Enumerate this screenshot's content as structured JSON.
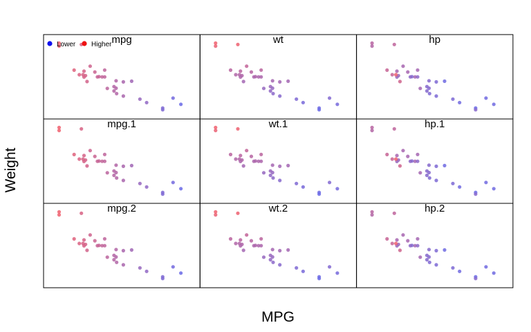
{
  "chart_data": {
    "type": "scatter",
    "xlabel": "MPG",
    "ylabel": "Weight",
    "layout": {
      "rows": 3,
      "cols": 3
    },
    "x_range": [
      9,
      36
    ],
    "y_range": [
      5.6,
      1.3
    ],
    "legend": {
      "placement": "top-left of first panel",
      "entries": [
        {
          "label": "Lower",
          "color": "#1010ee"
        },
        {
          "label": "Higher",
          "color": "#ee1010"
        }
      ]
    },
    "colors": {
      "low": "#6a6ae6",
      "high": "#f0606e"
    },
    "x": [
      21.0,
      21.0,
      22.8,
      21.4,
      18.7,
      18.1,
      14.3,
      24.4,
      22.8,
      19.2,
      17.8,
      16.4,
      17.3,
      15.2,
      10.4,
      10.4,
      14.7,
      32.4,
      30.4,
      33.9,
      21.5,
      15.5,
      15.2,
      13.3,
      19.2,
      27.3,
      26.0,
      30.4,
      15.8,
      19.7,
      15.0,
      21.4
    ],
    "y": [
      2.62,
      2.875,
      2.32,
      3.215,
      3.44,
      3.46,
      3.57,
      3.19,
      3.15,
      3.44,
      3.44,
      4.07,
      3.73,
      3.78,
      5.25,
      5.424,
      5.345,
      2.2,
      1.615,
      1.835,
      2.465,
      3.52,
      3.435,
      3.84,
      3.845,
      1.935,
      2.14,
      1.513,
      3.17,
      2.77,
      3.57,
      2.78
    ],
    "panels": [
      {
        "title": "mpg",
        "color_by": [
          21.0,
          21.0,
          22.8,
          21.4,
          18.7,
          18.1,
          14.3,
          24.4,
          22.8,
          19.2,
          17.8,
          16.4,
          17.3,
          15.2,
          10.4,
          10.4,
          14.7,
          32.4,
          30.4,
          33.9,
          21.5,
          15.5,
          15.2,
          13.3,
          19.2,
          27.3,
          26.0,
          30.4,
          15.8,
          19.7,
          15.0,
          21.4
        ],
        "invert": true,
        "show_legend": true
      },
      {
        "title": "wt",
        "color_by": [
          2.62,
          2.875,
          2.32,
          3.215,
          3.44,
          3.46,
          3.57,
          3.19,
          3.15,
          3.44,
          3.44,
          4.07,
          3.73,
          3.78,
          5.25,
          5.424,
          5.345,
          2.2,
          1.615,
          1.835,
          2.465,
          3.52,
          3.435,
          3.84,
          3.845,
          1.935,
          2.14,
          1.513,
          3.17,
          2.77,
          3.57,
          2.78
        ],
        "invert": false,
        "show_legend": false
      },
      {
        "title": "hp",
        "color_by": [
          110,
          110,
          93,
          110,
          175,
          105,
          245,
          62,
          95,
          123,
          123,
          180,
          180,
          180,
          205,
          215,
          230,
          66,
          52,
          65,
          97,
          150,
          150,
          245,
          175,
          66,
          91,
          113,
          264,
          175,
          335,
          109
        ],
        "invert": false,
        "show_legend": false
      },
      {
        "title": "mpg.1",
        "color_by": [
          21.0,
          21.0,
          22.8,
          21.4,
          18.7,
          18.1,
          14.3,
          24.4,
          22.8,
          19.2,
          17.8,
          16.4,
          17.3,
          15.2,
          10.4,
          10.4,
          14.7,
          32.4,
          30.4,
          33.9,
          21.5,
          15.5,
          15.2,
          13.3,
          19.2,
          27.3,
          26.0,
          30.4,
          15.8,
          19.7,
          15.0,
          21.4
        ],
        "invert": true,
        "show_legend": false
      },
      {
        "title": "wt.1",
        "color_by": [
          2.62,
          2.875,
          2.32,
          3.215,
          3.44,
          3.46,
          3.57,
          3.19,
          3.15,
          3.44,
          3.44,
          4.07,
          3.73,
          3.78,
          5.25,
          5.424,
          5.345,
          2.2,
          1.615,
          1.835,
          2.465,
          3.52,
          3.435,
          3.84,
          3.845,
          1.935,
          2.14,
          1.513,
          3.17,
          2.77,
          3.57,
          2.78
        ],
        "invert": false,
        "show_legend": false
      },
      {
        "title": "hp.1",
        "color_by": [
          110,
          110,
          93,
          110,
          175,
          105,
          245,
          62,
          95,
          123,
          123,
          180,
          180,
          180,
          205,
          215,
          230,
          66,
          52,
          65,
          97,
          150,
          150,
          245,
          175,
          66,
          91,
          113,
          264,
          175,
          335,
          109
        ],
        "invert": false,
        "show_legend": false
      },
      {
        "title": "mpg.2",
        "color_by": [
          21.0,
          21.0,
          22.8,
          21.4,
          18.7,
          18.1,
          14.3,
          24.4,
          22.8,
          19.2,
          17.8,
          16.4,
          17.3,
          15.2,
          10.4,
          10.4,
          14.7,
          32.4,
          30.4,
          33.9,
          21.5,
          15.5,
          15.2,
          13.3,
          19.2,
          27.3,
          26.0,
          30.4,
          15.8,
          19.7,
          15.0,
          21.4
        ],
        "invert": true,
        "show_legend": false
      },
      {
        "title": "wt.2",
        "color_by": [
          2.62,
          2.875,
          2.32,
          3.215,
          3.44,
          3.46,
          3.57,
          3.19,
          3.15,
          3.44,
          3.44,
          4.07,
          3.73,
          3.78,
          5.25,
          5.424,
          5.345,
          2.2,
          1.615,
          1.835,
          2.465,
          3.52,
          3.435,
          3.84,
          3.845,
          1.935,
          2.14,
          1.513,
          3.17,
          2.77,
          3.57,
          2.78
        ],
        "invert": false,
        "show_legend": false
      },
      {
        "title": "hp.2",
        "color_by": [
          110,
          110,
          93,
          110,
          175,
          105,
          245,
          62,
          95,
          123,
          123,
          180,
          180,
          180,
          205,
          215,
          230,
          66,
          52,
          65,
          97,
          150,
          150,
          245,
          175,
          66,
          91,
          113,
          264,
          175,
          335,
          109
        ],
        "invert": false,
        "show_legend": false
      }
    ]
  }
}
